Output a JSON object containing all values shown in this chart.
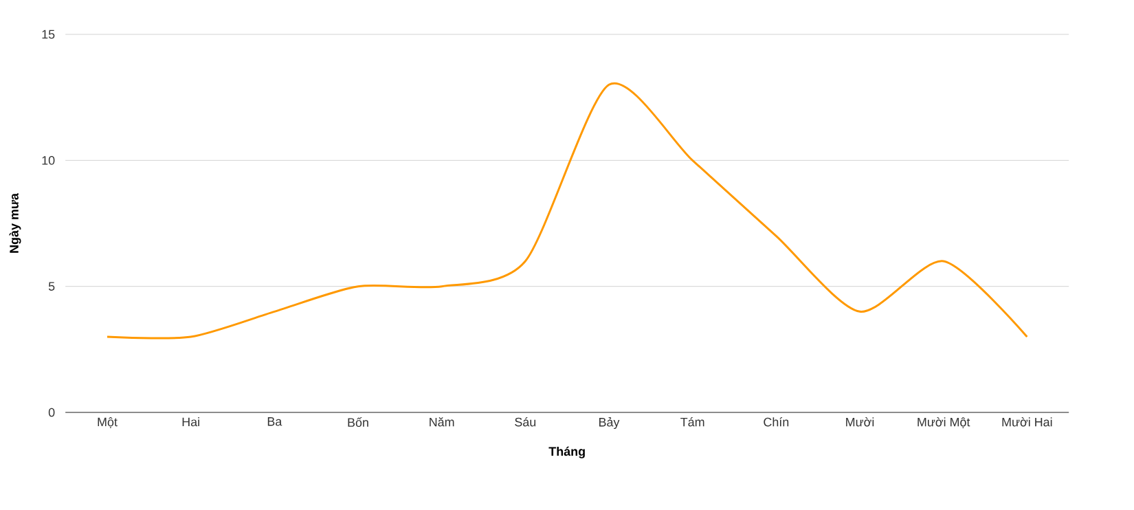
{
  "chart_data": {
    "type": "line",
    "xlabel": "Tháng",
    "ylabel": "Ngày mưa",
    "categories": [
      "Một",
      "Hai",
      "Ba",
      "Bốn",
      "Năm",
      "Sáu",
      "Bảy",
      "Tám",
      "Chín",
      "Mười",
      "Mười Một",
      "Mười Hai"
    ],
    "series": [
      {
        "color": "#ff9900",
        "values": [
          3,
          3,
          4,
          5,
          5,
          6,
          13,
          10,
          7,
          4,
          6,
          3
        ]
      }
    ],
    "ylim": [
      0,
      15
    ],
    "yticks": [
      0,
      5,
      10,
      15
    ],
    "grid": "y",
    "marker": "none",
    "line_style": "solid"
  }
}
